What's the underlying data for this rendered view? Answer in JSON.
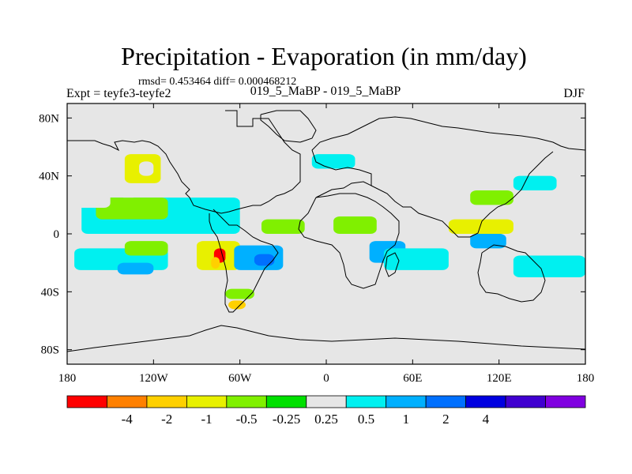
{
  "chart_data": {
    "type": "heatmap",
    "title": "Precipitation - Evaporation (in mm/day)",
    "stats": "rmsd= 0.453464  diff= 0.000468212",
    "left_label": "Expt = teyfe3-teyfe2",
    "center_label": "019_5_MaBP - 019_5_MaBP",
    "right_label": "DJF",
    "xlim": [
      -180,
      180
    ],
    "ylim": [
      -90,
      90
    ],
    "x_ticks": [
      {
        "value": -180,
        "label": "180"
      },
      {
        "value": -120,
        "label": "120W"
      },
      {
        "value": -60,
        "label": "60W"
      },
      {
        "value": 0,
        "label": "0"
      },
      {
        "value": 60,
        "label": "60E"
      },
      {
        "value": 120,
        "label": "120E"
      },
      {
        "value": 180,
        "label": "180"
      }
    ],
    "y_ticks": [
      {
        "value": 80,
        "label": "80N"
      },
      {
        "value": 40,
        "label": "40N"
      },
      {
        "value": 0,
        "label": "0"
      },
      {
        "value": -40,
        "label": "40S"
      },
      {
        "value": -80,
        "label": "80S"
      }
    ],
    "colorbar": {
      "colors": [
        "#ff0000",
        "#ff8000",
        "#ffd000",
        "#e8f000",
        "#80f000",
        "#00e000",
        "#e6e6e6",
        "#00f0f0",
        "#00b0ff",
        "#0070ff",
        "#0000e0",
        "#4000d0",
        "#8000e0"
      ],
      "labels": [
        "-4",
        "-2",
        "-1",
        "-0.5",
        "-0.25",
        "0.25",
        "0.5",
        "1",
        "2",
        "4"
      ]
    },
    "fields": [
      {
        "lon_min": -180,
        "lon_max": 180,
        "lat_min": -90,
        "lat_max": 90,
        "value": 0
      },
      {
        "lon_min": -170,
        "lon_max": -60,
        "lat_min": 0,
        "lat_max": 25,
        "value": 0.7
      },
      {
        "lon_min": -160,
        "lon_max": -110,
        "lat_min": 10,
        "lat_max": 25,
        "value": -0.4
      },
      {
        "lon_min": -175,
        "lon_max": -150,
        "lat_min": 18,
        "lat_max": 30,
        "value": 0.3
      },
      {
        "lon_min": -145,
        "lon_max": -130,
        "lat_min": 25,
        "lat_max": 35,
        "value": 0.4
      },
      {
        "lon_min": -175,
        "lon_max": -110,
        "lat_min": -25,
        "lat_max": -10,
        "value": 0.6
      },
      {
        "lon_min": -140,
        "lon_max": -110,
        "lat_min": -15,
        "lat_max": -5,
        "value": -0.3
      },
      {
        "lon_min": -145,
        "lon_max": -120,
        "lat_min": -28,
        "lat_max": -20,
        "value": 1.5
      },
      {
        "lon_min": -180,
        "lon_max": -168,
        "lat_min": -40,
        "lat_max": -30,
        "value": 0.4
      },
      {
        "lon_min": -90,
        "lon_max": -60,
        "lat_min": -25,
        "lat_max": -5,
        "value": -0.6
      },
      {
        "lon_min": -78,
        "lon_max": -70,
        "lat_min": -20,
        "lat_max": -10,
        "value": -4.5
      },
      {
        "lon_min": -80,
        "lon_max": -74,
        "lat_min": -24,
        "lat_max": -16,
        "value": -1.5
      },
      {
        "lon_min": -64,
        "lon_max": -30,
        "lat_min": -25,
        "lat_max": -8,
        "value": 1.5
      },
      {
        "lon_min": -50,
        "lon_max": -36,
        "lat_min": -22,
        "lat_max": -14,
        "value": 3
      },
      {
        "lon_min": -70,
        "lon_max": -50,
        "lat_min": -45,
        "lat_max": -38,
        "value": -0.4
      },
      {
        "lon_min": -68,
        "lon_max": -56,
        "lat_min": -52,
        "lat_max": -46,
        "value": -1.5
      },
      {
        "lon_min": -45,
        "lon_max": -15,
        "lat_min": 0,
        "lat_max": 10,
        "value": -0.5
      },
      {
        "lon_min": 5,
        "lon_max": 35,
        "lat_min": 0,
        "lat_max": 12,
        "value": -0.3
      },
      {
        "lon_min": 30,
        "lon_max": 55,
        "lat_min": -20,
        "lat_max": -5,
        "value": 1.5
      },
      {
        "lon_min": 40,
        "lon_max": 85,
        "lat_min": -25,
        "lat_max": -10,
        "value": 0.8
      },
      {
        "lon_min": 85,
        "lon_max": 130,
        "lat_min": 0,
        "lat_max": 10,
        "value": -0.6
      },
      {
        "lon_min": 100,
        "lon_max": 125,
        "lat_min": -10,
        "lat_max": 0,
        "value": 1.2
      },
      {
        "lon_min": 130,
        "lon_max": 180,
        "lat_min": -30,
        "lat_max": -15,
        "value": 0.7
      },
      {
        "lon_min": -10,
        "lon_max": 20,
        "lat_min": 45,
        "lat_max": 55,
        "value": 0.6
      },
      {
        "lon_min": 100,
        "lon_max": 130,
        "lat_min": 20,
        "lat_max": 30,
        "value": -0.4
      },
      {
        "lon_min": 130,
        "lon_max": 160,
        "lat_min": 30,
        "lat_max": 40,
        "value": 0.5
      },
      {
        "lon_min": -140,
        "lon_max": -115,
        "lat_min": 35,
        "lat_max": 55,
        "value": -0.6
      },
      {
        "lon_min": -130,
        "lon_max": -120,
        "lat_min": 40,
        "lat_max": 50,
        "value": 0.4
      }
    ],
    "coastline_notes": "Coarse-grid continental outlines (Americas, Africa, Eurasia, Australia, Antarctica) drawn as polylines."
  }
}
